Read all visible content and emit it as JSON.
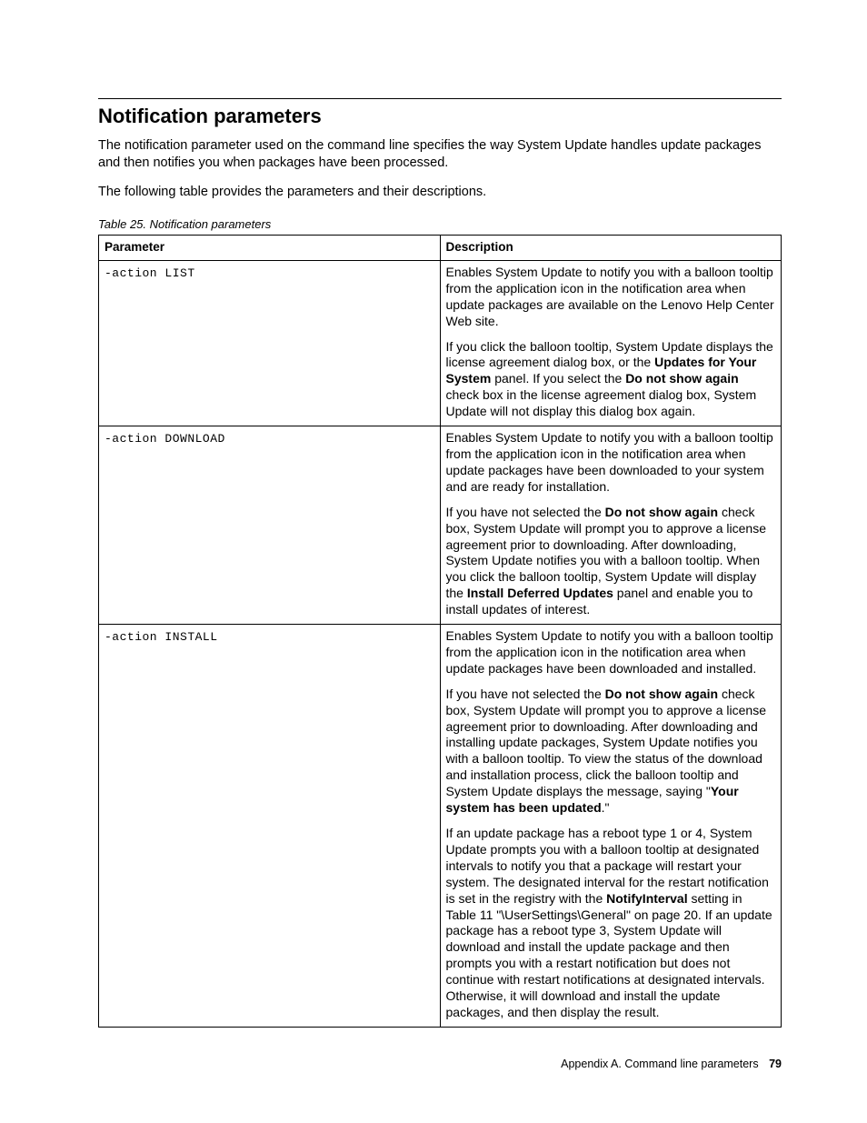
{
  "section": {
    "title": "Notification parameters",
    "intro1": "The notification parameter used on the command line specifies the way System Update handles update packages and then notifies you when packages have been processed.",
    "intro2": "The following table provides the parameters and their descriptions."
  },
  "tableCaption": "Table 25.  Notification parameters",
  "table": {
    "headers": {
      "param": "Parameter",
      "desc": "Description"
    },
    "rows": [
      {
        "param": "-action LIST",
        "desc_html": "<p>Enables System Update to notify you with a balloon tooltip from the application icon in the notification area when update packages are available on the Lenovo Help Center Web site.</p><p>If you click the balloon tooltip, System Update displays the license agreement dialog box, or the <b>Updates for Your System</b> panel. If you select the <b>Do not show again</b> check box in the license agreement dialog box, System Update will not display this dialog box again.</p>"
      },
      {
        "param": "-action DOWNLOAD",
        "desc_html": "<p>Enables System Update to notify you with a balloon tooltip from the application icon in the notification area when update packages have been downloaded to your system and are ready for installation.</p><p>If you have not selected the <b>Do not show again</b> check box, System Update will prompt you to approve a license agreement prior to downloading. After downloading, System Update notifies you with a balloon tooltip. When you click the balloon tooltip, System Update will display the <b>Install Deferred Updates</b> panel and enable you to install updates of interest.</p>"
      },
      {
        "param": "-action INSTALL",
        "desc_html": "<p>Enables System Update to notify you with a balloon tooltip from the application icon in the notification area when update packages have been downloaded and installed.</p><p>If you have not selected the <b>Do not show again</b> check box, System Update will prompt you to approve a license agreement prior to downloading. After downloading and installing update packages, System Update notifies you with a balloon tooltip. To view the status of the download and installation process, click the balloon tooltip and System Update displays the message, saying \"<b>Your system has been updated</b>.\"</p><p>If an update package has a reboot type 1 or 4, System Update prompts you with a balloon tooltip at designated intervals to notify you that a package will restart your system. The designated interval for the restart notification is set in the registry with the <b>NotifyInterval</b> setting in Table 11 \"\\UserSettings\\General\" on page 20. If an update package has a reboot type 3, System Update will download and install the update package and then prompts you with a restart notification but does not continue with restart notifications at designated intervals. Otherwise, it will download and install the update packages, and then display the result.</p>"
      }
    ]
  },
  "footer": {
    "text": "Appendix A.  Command line parameters",
    "page": "79"
  }
}
